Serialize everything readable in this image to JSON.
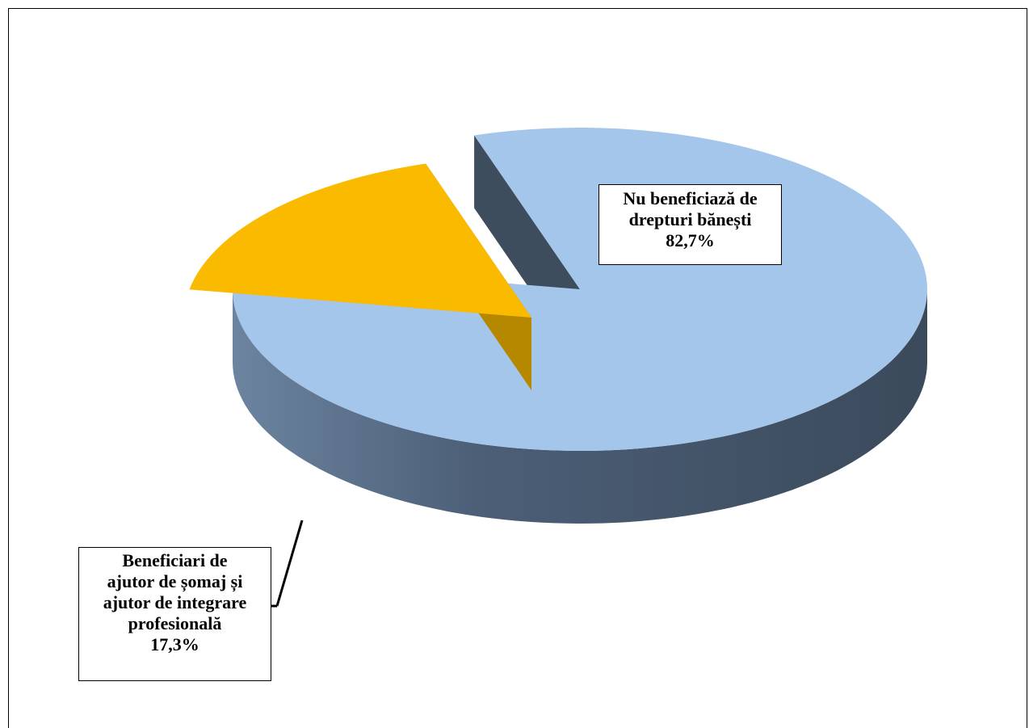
{
  "chart_data": {
    "type": "pie",
    "style": "3d-exploded",
    "slices": [
      {
        "label": "Nu beneficiază de drepturi bănești",
        "label_lines": [
          "Nu beneficiază de",
          "drepturi bănești"
        ],
        "value": 82.7,
        "value_text": "82,7%",
        "color": "#A5C6EB",
        "side_color": "#3E4D5E"
      },
      {
        "label": "Beneficiari de ajutor de șomaj și ajutor de integrare profesională",
        "label_lines": [
          "Beneficiari de",
          "ajutor de șomaj și",
          "ajutor de integrare",
          "profesională"
        ],
        "value": 17.3,
        "value_text": "17,3%",
        "color": "#F9BA00",
        "side_color": "#B58800"
      }
    ],
    "legend": "none"
  }
}
